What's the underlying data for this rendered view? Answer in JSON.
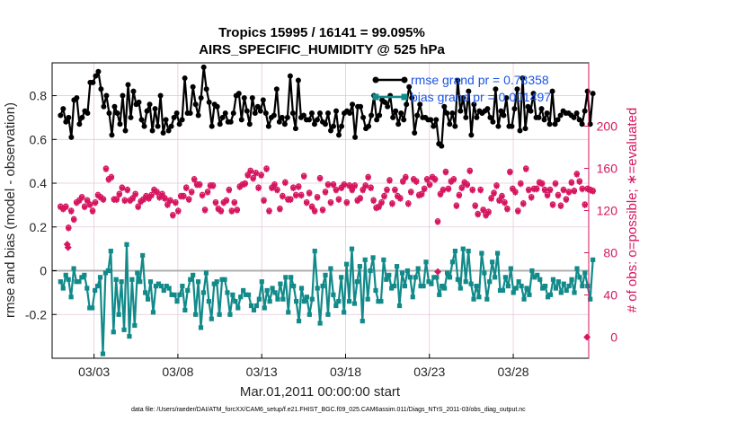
{
  "chart_data": {
    "type": "line",
    "title": "Tropics 15995 / 16141 = 99.095%",
    "subtitle": "AIRS_SPECIFIC_HUMIDITY @ 525 hPa",
    "xlabel": "Mar.01,2011 00:00:00 start",
    "ylabel": "rmse and bias (model - observation)",
    "y2label": "# of obs: o=possible; ∗=evaluated",
    "xlim": [
      0.5,
      32.5
    ],
    "ylim": [
      -0.4,
      0.95
    ],
    "y2lim": [
      -20,
      260
    ],
    "xticks": [
      3,
      8,
      13,
      18,
      23,
      28
    ],
    "xtick_labels": [
      "03/03",
      "03/08",
      "03/13",
      "03/18",
      "03/23",
      "03/28"
    ],
    "yticks": [
      -0.2,
      0,
      0.2,
      0.4,
      0.6,
      0.8
    ],
    "ytick_labels": [
      "-0.2",
      "0",
      "0.2",
      "0.4",
      "0.6",
      "0.8"
    ],
    "y2ticks": [
      0,
      40,
      80,
      120,
      160,
      200
    ],
    "y2tick_labels": [
      "0",
      "40",
      "80",
      "120",
      "160",
      "200"
    ],
    "grid": true,
    "legend_position": "top-right",
    "series": [
      {
        "name": "rmse",
        "legend": "rmse grand pr = 0.78358",
        "axis": "left",
        "color": "#000000",
        "values": [
          0.71,
          0.74,
          0.68,
          0.7,
          0.61,
          0.78,
          0.79,
          0.67,
          0.7,
          0.73,
          0.72,
          0.86,
          0.86,
          0.89,
          0.91,
          0.83,
          0.75,
          0.8,
          0.72,
          0.62,
          0.75,
          0.72,
          0.67,
          0.8,
          0.64,
          0.85,
          0.7,
          0.82,
          0.76,
          0.77,
          0.69,
          0.66,
          0.73,
          0.76,
          0.64,
          0.74,
          0.66,
          0.8,
          0.63,
          0.69,
          0.64,
          0.66,
          0.7,
          0.72,
          0.67,
          0.69,
          0.88,
          0.72,
          0.72,
          0.84,
          0.76,
          0.71,
          0.79,
          0.93,
          0.83,
          0.77,
          0.66,
          0.76,
          0.75,
          0.67,
          0.7,
          0.72,
          0.68,
          0.68,
          0.72,
          0.8,
          0.81,
          0.69,
          0.79,
          0.73,
          0.67,
          0.79,
          0.72,
          0.75,
          0.73,
          0.78,
          0.72,
          0.66,
          0.7,
          0.71,
          0.83,
          0.68,
          0.7,
          0.67,
          0.7,
          0.89,
          0.72,
          0.65,
          0.87,
          0.7,
          0.71,
          0.69,
          0.69,
          0.72,
          0.67,
          0.69,
          0.72,
          0.68,
          0.67,
          0.72,
          0.64,
          0.66,
          0.73,
          0.62,
          0.66,
          0.72,
          0.73,
          0.72,
          0.76,
          0.61,
          0.75,
          0.75,
          0.7,
          0.65,
          0.66,
          0.71,
          0.8,
          0.69,
          0.71,
          0.78,
          0.77,
          0.75,
          0.8,
          0.7,
          0.73,
          0.67,
          0.72,
          0.69,
          0.76,
          0.84,
          0.79,
          0.63,
          0.71,
          0.76,
          0.7,
          0.7,
          0.69,
          0.69,
          0.66,
          0.69,
          0.58,
          0.57,
          0.75,
          0.72,
          0.67,
          0.72,
          0.66,
          0.87,
          0.73,
          0.79,
          0.7,
          0.82,
          0.62,
          0.76,
          0.7,
          0.73,
          0.72,
          0.73,
          0.74,
          0.7,
          0.68,
          0.83,
          0.66,
          0.73,
          0.71,
          0.79,
          0.66,
          0.66,
          0.74,
          0.83,
          0.64,
          0.88,
          0.65,
          0.75,
          0.73,
          0.81,
          0.7,
          0.7,
          0.74,
          0.69,
          0.72,
          0.67,
          0.82,
          0.67,
          0.69,
          0.71,
          0.73,
          0.72,
          0.72,
          0.71,
          0.7,
          0.72,
          0.69,
          0.67,
          0.73,
          0.82,
          0.67,
          0.81
        ]
      },
      {
        "name": "bias",
        "legend": "bias grand pr = 0.001497",
        "axis": "left",
        "color": "#128a8a",
        "values": [
          -0.05,
          -0.08,
          -0.02,
          -0.04,
          -0.12,
          0.01,
          -0.05,
          -0.05,
          -0.03,
          -0.02,
          -0.08,
          -0.17,
          -0.17,
          -0.09,
          -0.07,
          -0.03,
          -0.38,
          -0.01,
          0.0,
          0.09,
          -0.28,
          -0.04,
          -0.2,
          -0.05,
          -0.27,
          0.12,
          -0.3,
          -0.04,
          -0.25,
          -0.01,
          -0.05,
          0.07,
          -0.1,
          -0.13,
          -0.05,
          -0.19,
          -0.07,
          -0.06,
          -0.07,
          -0.09,
          -0.07,
          -0.08,
          -0.11,
          -0.11,
          -0.14,
          -0.11,
          -0.07,
          -0.18,
          -0.09,
          -0.04,
          -0.02,
          -0.2,
          -0.05,
          -0.26,
          -0.1,
          -0.01,
          -0.14,
          -0.22,
          -0.06,
          -0.05,
          -0.2,
          -0.04,
          -0.04,
          -0.1,
          -0.2,
          -0.11,
          -0.14,
          -0.17,
          -0.12,
          -0.09,
          -0.11,
          -0.11,
          -0.16,
          -0.18,
          -0.16,
          -0.13,
          -0.05,
          -0.17,
          -0.09,
          -0.14,
          -0.08,
          -0.1,
          -0.13,
          -0.06,
          -0.13,
          -0.03,
          -0.19,
          -0.03,
          -0.07,
          -0.14,
          -0.23,
          -0.08,
          -0.14,
          -0.12,
          -0.2,
          -0.13,
          0.09,
          -0.08,
          -0.24,
          -0.07,
          -0.02,
          -0.2,
          0.01,
          -0.11,
          -0.16,
          -0.14,
          -0.03,
          -0.19,
          0.03,
          -0.14,
          0.1,
          -0.15,
          -0.05,
          0.02,
          -0.23,
          0.05,
          -0.13,
          0.0,
          0.06,
          -0.09,
          -0.14,
          -0.14,
          0.05,
          -0.04,
          -0.02,
          -0.08,
          -0.07,
          0.02,
          -0.16,
          -0.01,
          -0.07,
          0.0,
          -0.03,
          -0.12,
          -0.03,
          0.01,
          -0.07,
          -0.07,
          0.04,
          -0.05,
          -0.06,
          -0.03,
          -0.03,
          -0.11,
          -0.07,
          -0.08,
          -0.01,
          -0.03,
          0.04,
          0.09,
          -0.04,
          -0.08,
          0.1,
          -0.05,
          0.09,
          -0.06,
          -0.13,
          -0.07,
          -0.12,
          0.08,
          -0.01,
          -0.13,
          -0.05,
          0.04,
          -0.03,
          0.08,
          -0.09,
          -0.09,
          -0.03,
          -0.07,
          0.01,
          -0.1,
          -0.08,
          -0.05,
          -0.07,
          -0.13,
          -0.08,
          -0.11,
          0.0,
          -0.03,
          -0.02,
          -0.04,
          -0.08,
          -0.07,
          -0.12,
          -0.11,
          -0.04,
          -0.08,
          -0.05,
          -0.1,
          -0.06,
          -0.09,
          -0.07,
          -0.04,
          -0.1,
          0.01,
          -0.03,
          -0.07,
          -0.01,
          -0.07,
          -0.13,
          0.05
        ]
      },
      {
        "name": "obs possible",
        "marker": "o",
        "axis": "right",
        "color": "#d6165f",
        "values": [
          124,
          122,
          124,
          104,
          120,
          112,
          128,
          130,
          133,
          124,
          130,
          126,
          120,
          128,
          135,
          133,
          131,
          160,
          150,
          152,
          131,
          131,
          136,
          142,
          130,
          140,
          130,
          132,
          136,
          124,
          129,
          131,
          134,
          132,
          135,
          140,
          138,
          133,
          136,
          132,
          126,
          130,
          116,
          128,
          120,
          134,
          134,
          142,
          131,
          138,
          150,
          145,
          145,
          135,
          121,
          138,
          144,
          144,
          128,
          122,
          120,
          128,
          130,
          140,
          120,
          128,
          121,
          143,
          145,
          146,
          154,
          158,
          151,
          156,
          142,
          154,
          130,
          160,
          120,
          142,
          145,
          140,
          122,
          134,
          147,
          131,
          131,
          142,
          135,
          143,
          135,
          153,
          128,
          137,
          124,
          120,
          133,
          151,
          121,
          138,
          145,
          128,
          145,
          140,
          131,
          142,
          145,
          128,
          144,
          140,
          144,
          130,
          132,
          140,
          144,
          152,
          142,
          130,
          123,
          124,
          128,
          134,
          140,
          149,
          127,
          140,
          134,
          132,
          148,
          152,
          127,
          138,
          150,
          148,
          135,
          136,
          141,
          150,
          145,
          152,
          150,
          110,
          136,
          140,
          157,
          141,
          148,
          150,
          125,
          135,
          142,
          147,
          145,
          158,
          140,
          125,
          117,
          140,
          121,
          116,
          119,
          132,
          137,
          144,
          130,
          134,
          128,
          122,
          157,
          141,
          138,
          120,
          146,
          127,
          160,
          140,
          133,
          141,
          141,
          147,
          146,
          140,
          135,
          140,
          126,
          146,
          135,
          125,
          140,
          131,
          138,
          147,
          139,
          155,
          148,
          141,
          126,
          141,
          140,
          139
        ]
      },
      {
        "name": "obs evaluated",
        "marker": "*",
        "axis": "right",
        "color": "#d6165f",
        "values": [
          123,
          121,
          123,
          103,
          119,
          111,
          127,
          129,
          132,
          123,
          129,
          125,
          119,
          127,
          134,
          132,
          130,
          159,
          149,
          151,
          130,
          130,
          135,
          141,
          129,
          139,
          129,
          131,
          135,
          123,
          128,
          130,
          133,
          131,
          134,
          139,
          137,
          132,
          135,
          131,
          125,
          129,
          115,
          127,
          119,
          133,
          133,
          141,
          130,
          137,
          149,
          144,
          144,
          134,
          120,
          137,
          143,
          143,
          127,
          121,
          119,
          127,
          129,
          139,
          119,
          127,
          120,
          142,
          144,
          145,
          153,
          157,
          150,
          155,
          141,
          153,
          129,
          159,
          119,
          141,
          144,
          139,
          121,
          133,
          146,
          130,
          130,
          141,
          134,
          142,
          134,
          152,
          127,
          136,
          123,
          119,
          132,
          150,
          120,
          137,
          144,
          127,
          144,
          139,
          130,
          141,
          144,
          127,
          143,
          139,
          143,
          129,
          131,
          139,
          143,
          151,
          141,
          129,
          122,
          123,
          127,
          133,
          139,
          148,
          126,
          139,
          133,
          131,
          147,
          151,
          126,
          137,
          149,
          147,
          134,
          135,
          140,
          149,
          144,
          151,
          149,
          109,
          135,
          139,
          156,
          140,
          147,
          149,
          124,
          134,
          141,
          146,
          144,
          157,
          139,
          124,
          116,
          139,
          120,
          115,
          118,
          131,
          136,
          143,
          129,
          133,
          127,
          121,
          156,
          140,
          137,
          119,
          145,
          126,
          159,
          139,
          132,
          140,
          140,
          146,
          145,
          139,
          134,
          139,
          125,
          145,
          134,
          124,
          139,
          130,
          137,
          146,
          138,
          154,
          147,
          140,
          125,
          140,
          139,
          138
        ]
      },
      {
        "name": "outlier points",
        "axis": "right",
        "color": "#d6165f",
        "points": [
          [
            1.4,
            88
          ],
          [
            1.45,
            85
          ],
          [
            23.5,
            62
          ],
          [
            32.4,
            0
          ]
        ]
      }
    ]
  },
  "footer": {
    "data_file": "data file: /Users/raeder/DAI/ATM_forcXX/CAM6_setup/f.e21.FHIST_BGC.f09_025.CAM6assim.011/Diags_NTrS_2011-03/obs_diag_output.nc"
  }
}
